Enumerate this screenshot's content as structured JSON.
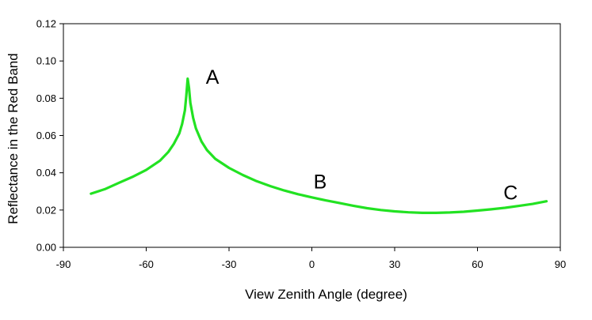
{
  "chart_data": {
    "type": "line",
    "xlabel": "View Zenith Angle  (degree)",
    "ylabel": "Reflectance in the Red Band",
    "xlim": [
      -90,
      90
    ],
    "ylim": [
      0,
      0.12
    ],
    "x_ticks": [
      -90,
      -60,
      -30,
      0,
      30,
      60,
      90
    ],
    "x_tick_labels": [
      "-90",
      "-60",
      "-30",
      "0",
      "30",
      "60",
      "90"
    ],
    "y_ticks": [
      0,
      0.02,
      0.04,
      0.06,
      0.08,
      0.1,
      0.12
    ],
    "y_tick_labels": [
      "0.00",
      "0.02",
      "0.04",
      "0.06",
      "0.08",
      "0.10",
      "0.12"
    ],
    "grid": false,
    "line_color": "#22e222",
    "series": [
      {
        "x": [
          -80,
          -75,
          -70,
          -65,
          -60,
          -55,
          -52,
          -50,
          -48,
          -47,
          -46,
          -45.5,
          -45,
          -44.5,
          -44,
          -43,
          -42,
          -40,
          -38,
          -35,
          -30,
          -25,
          -20,
          -15,
          -10,
          -5,
          0,
          5,
          10,
          15,
          20,
          25,
          30,
          35,
          40,
          45,
          50,
          55,
          60,
          65,
          70,
          75,
          80,
          85
        ],
        "y": [
          0.0288,
          0.0312,
          0.0345,
          0.0378,
          0.0415,
          0.0465,
          0.0512,
          0.0555,
          0.0612,
          0.0662,
          0.0735,
          0.081,
          0.0905,
          0.0855,
          0.0775,
          0.0695,
          0.0638,
          0.0568,
          0.0522,
          0.0475,
          0.0426,
          0.0388,
          0.0355,
          0.0328,
          0.0305,
          0.0285,
          0.0268,
          0.0252,
          0.0238,
          0.0223,
          0.021,
          0.02,
          0.0193,
          0.0188,
          0.0185,
          0.0185,
          0.0187,
          0.0191,
          0.0197,
          0.0204,
          0.0212,
          0.0222,
          0.0233,
          0.0247
        ]
      }
    ],
    "annotations": [
      {
        "text": "A",
        "x": -36,
        "y": 0.0915
      },
      {
        "text": "B",
        "x": 3,
        "y": 0.0355
      },
      {
        "text": "C",
        "x": 72,
        "y": 0.0295
      }
    ]
  }
}
